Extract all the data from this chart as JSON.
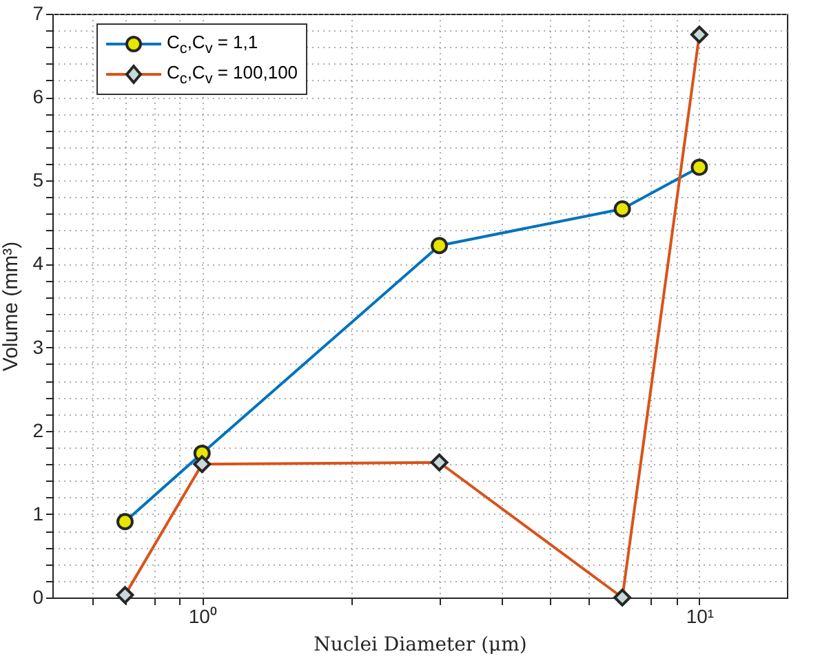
{
  "chart_data": {
    "type": "line",
    "xlabel": "Nuclei Diameter (μm)",
    "ylabel": "Volume (mm³)",
    "log": "x",
    "grid": true,
    "legend": "top left",
    "xlim": [
      0.5,
      15
    ],
    "ylim": [
      0,
      7
    ],
    "xticks": [
      {
        "value": 0.6,
        "label": null
      },
      {
        "value": 0.7,
        "label": null
      },
      {
        "value": 0.8,
        "label": null
      },
      {
        "value": 0.9,
        "label": null
      },
      {
        "value": 1,
        "label": "10⁰"
      },
      {
        "value": 2,
        "label": null
      },
      {
        "value": 3,
        "label": null
      },
      {
        "value": 4,
        "label": null
      },
      {
        "value": 5,
        "label": null
      },
      {
        "value": 6,
        "label": null
      },
      {
        "value": 7,
        "label": null
      },
      {
        "value": 8,
        "label": null
      },
      {
        "value": 9,
        "label": null
      },
      {
        "value": 10,
        "label": "10¹"
      }
    ],
    "yticks": [
      0,
      {
        "value": 0.2,
        "label": null
      },
      {
        "value": 0.4,
        "label": null
      },
      {
        "value": 0.6,
        "label": null
      },
      {
        "value": 0.8,
        "label": null
      },
      1,
      {
        "value": 1.2,
        "label": null
      },
      {
        "value": 1.4,
        "label": null
      },
      {
        "value": 1.6,
        "label": null
      },
      {
        "value": 1.8,
        "label": null
      },
      2,
      {
        "value": 2.2,
        "label": null
      },
      {
        "value": 2.4,
        "label": null
      },
      {
        "value": 2.6,
        "label": null
      },
      {
        "value": 2.8,
        "label": null
      },
      3,
      {
        "value": 3.2,
        "label": null
      },
      {
        "value": 3.4,
        "label": null
      },
      {
        "value": 3.6,
        "label": null
      },
      {
        "value": 3.8,
        "label": null
      },
      4,
      {
        "value": 4.2,
        "label": null
      },
      {
        "value": 4.4,
        "label": null
      },
      {
        "value": 4.6,
        "label": null
      },
      {
        "value": 4.8,
        "label": null
      },
      5,
      {
        "value": 5.2,
        "label": null
      },
      {
        "value": 5.4,
        "label": null
      },
      {
        "value": 5.6,
        "label": null
      },
      {
        "value": 5.8,
        "label": null
      },
      6,
      {
        "value": 6.2,
        "label": null
      },
      {
        "value": 6.4,
        "label": null
      },
      {
        "value": 6.6,
        "label": null
      },
      {
        "value": 6.8,
        "label": null
      },
      7
    ],
    "x": [
      0.7,
      1,
      3,
      7,
      10
    ],
    "series": [
      {
        "name": "C$_{c}$,C$_{v}$ = 1,1",
        "color": "#0072bd",
        "marker": "circle",
        "values": [
          0.91,
          1.73,
          4.22,
          4.66,
          5.16
        ]
      },
      {
        "name": "C$_{c}$,C$_{v}$ = 100,100",
        "color": "#d95319",
        "marker": "diamond",
        "values": [
          0.03,
          1.6,
          1.62,
          0.0,
          6.75
        ]
      }
    ]
  }
}
